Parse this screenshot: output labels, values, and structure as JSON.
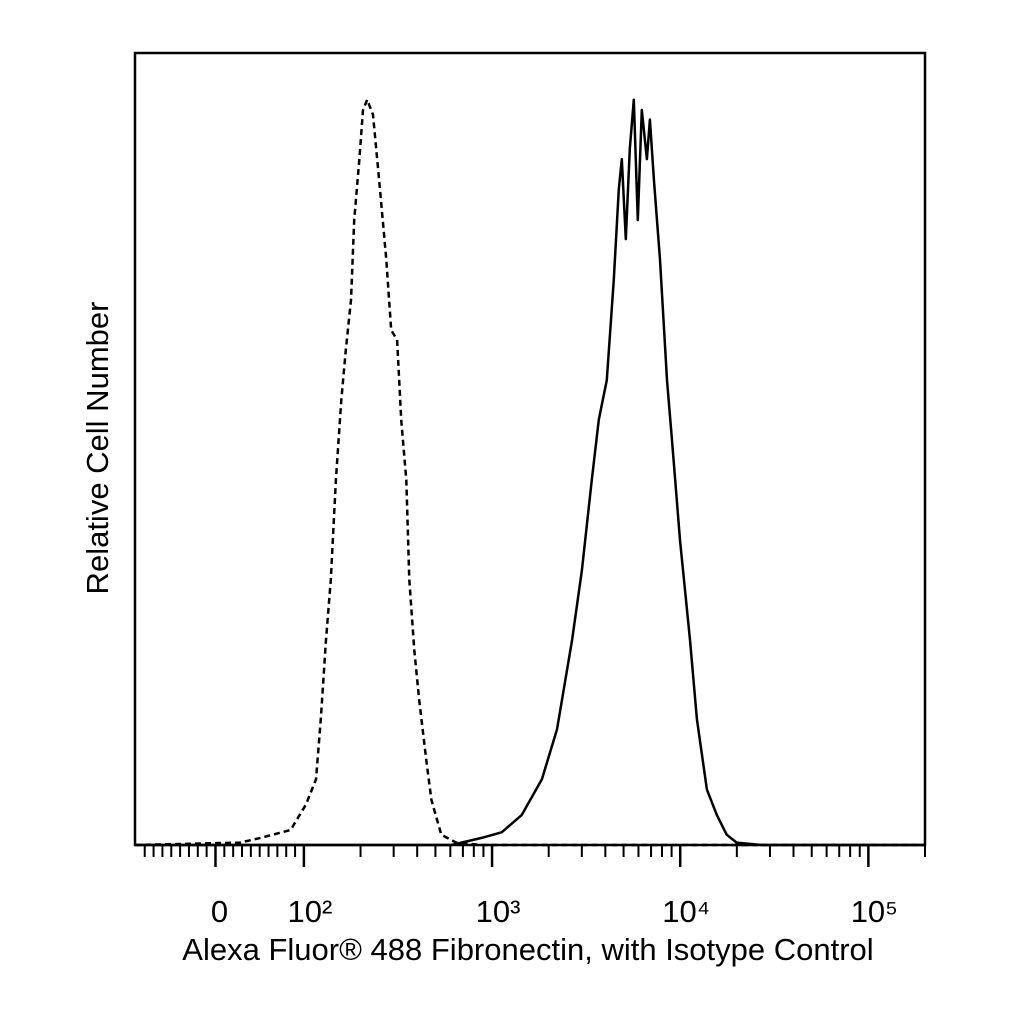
{
  "chart_data": {
    "type": "histogram-overlay",
    "xlabel": "Alexa Fluor® 488 Fibronectin, with Isotype Control",
    "ylabel": "Relative Cell Number",
    "xscale": "biexponential",
    "xlim": [
      -91,
      200000
    ],
    "ylim": [
      0,
      100
    ],
    "xticks": [
      0,
      {
        "value": 100,
        "label": "10²"
      },
      {
        "value": 1000,
        "label": "10³"
      },
      {
        "value": 10000,
        "label": "10⁴"
      },
      {
        "value": 100000,
        "label": "10⁵"
      }
    ],
    "xminorticks": [
      -80,
      -70,
      -60,
      -50,
      -40,
      -30,
      -20,
      -10,
      10,
      20,
      30,
      40,
      50,
      60,
      70,
      80,
      90,
      200,
      300,
      400,
      500,
      600,
      700,
      800,
      900,
      2000,
      3000,
      4000,
      5000,
      6000,
      7000,
      8000,
      9000,
      20000,
      30000,
      40000,
      50000,
      60000,
      70000,
      80000,
      90000,
      200000
    ],
    "series": [
      {
        "color": "#000000",
        "dashed": true,
        "x": [
          -91,
          28,
          51,
          85,
          102.5,
          116,
          123,
          131,
          139,
          148,
          158,
          167,
          178,
          185,
          197,
          206,
          217,
          233,
          251,
          274,
          291,
          313,
          329,
          350,
          363,
          386,
          410,
          447,
          476,
          537,
          645,
          880,
          200000
        ],
        "values": [
          0,
          0.3,
          0.9,
          1.9,
          5.1,
          8.3,
          15.9,
          25.9,
          33.5,
          46.1,
          56.2,
          62.5,
          68.8,
          78.9,
          86.5,
          92.8,
          94.1,
          92.2,
          84,
          73.9,
          65,
          63.8,
          53.7,
          46.1,
          33.5,
          24.6,
          18.3,
          10.7,
          5.7,
          1.3,
          0.3,
          0,
          0
        ]
      },
      {
        "color": "#000000",
        "dashed": false,
        "x": [
          -91,
          608,
          880,
          1125,
          1439,
          1841,
          2214,
          2663,
          3003,
          3388,
          3692,
          4070,
          4437,
          4715,
          4893,
          5139,
          5397,
          5668,
          5952,
          6251,
          6654,
          6905,
          7251,
          7805,
          8506,
          9040,
          9973,
          11270,
          12270,
          13860,
          15640,
          17660,
          19940,
          27060,
          200000
        ],
        "values": [
          0,
          0,
          0.9,
          1.6,
          3.8,
          8.3,
          14.6,
          25.9,
          34.7,
          46.1,
          53.7,
          58.7,
          71.4,
          82.8,
          86.6,
          76.5,
          87.9,
          94.1,
          78.9,
          92.8,
          86.6,
          91.6,
          84,
          73.9,
          58.7,
          51.1,
          38.5,
          25.9,
          15.9,
          7,
          3.8,
          1.3,
          0.3,
          0,
          0
        ]
      }
    ]
  }
}
